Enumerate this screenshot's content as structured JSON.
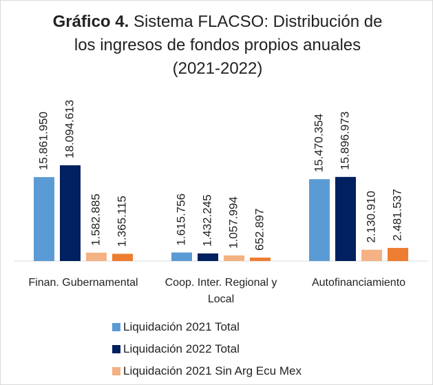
{
  "chart_data": {
    "type": "bar",
    "title_label": "Gráfico 4.",
    "title": "Sistema FLACSO: Distribución de los ingresos de fondos propios anuales (2021-2022)",
    "categories": [
      "Finan. Gubernamental",
      "Coop. Inter. Regional y Local",
      "Autofinanciamiento"
    ],
    "series": [
      {
        "name": "Liquidación 2021 Total",
        "color": "#5b9bd5",
        "values": [
          15861950,
          1615756,
          15470354
        ],
        "value_labels": [
          "15.861.950",
          "1.615.756",
          "15.470.354"
        ]
      },
      {
        "name": "Liquidación 2022 Total",
        "color": "#002060",
        "values": [
          18094613,
          1432245,
          15896973
        ],
        "value_labels": [
          "18.094.613",
          "1.432.245",
          "15.896.973"
        ]
      },
      {
        "name": "Liquidación 2021 Sin Arg Ecu Mex",
        "color": "#f4b183",
        "values": [
          1582885,
          1057994,
          2130910
        ],
        "value_labels": [
          "1.582.885",
          "1.057.994",
          "2.130.910"
        ]
      },
      {
        "color": "#ed7d31",
        "values": [
          1365115,
          652897,
          2481537
        ],
        "value_labels": [
          "1.365.115",
          "652.897",
          "2.481.537"
        ]
      }
    ]
  }
}
